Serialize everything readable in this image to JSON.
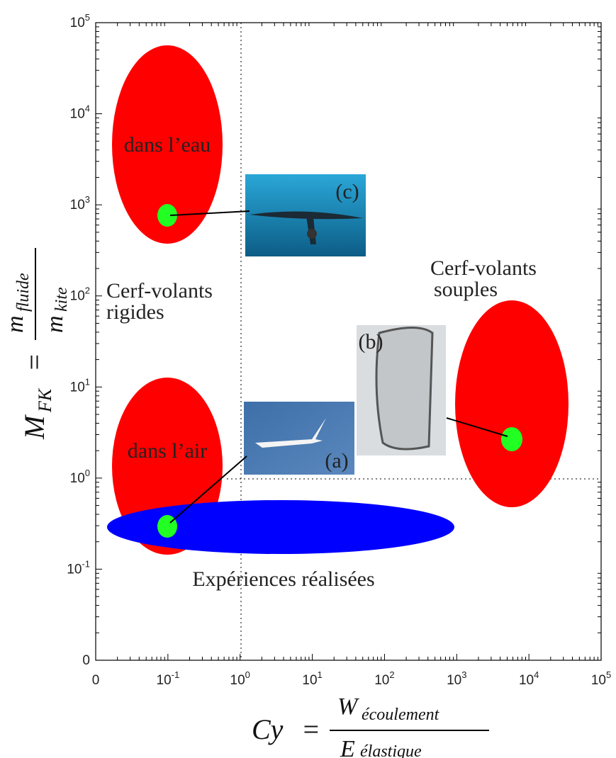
{
  "x_ticks": [
    {
      "base": "0"
    },
    {
      "base": "10",
      "exponent": "-1"
    },
    {
      "base": "10",
      "exponent": "0"
    },
    {
      "base": "10",
      "exponent": "1"
    },
    {
      "base": "10",
      "exponent": "2"
    },
    {
      "base": "10",
      "exponent": "3"
    },
    {
      "base": "10",
      "exponent": "4"
    },
    {
      "base": "10",
      "exponent": "5"
    }
  ],
  "y_ticks": [
    {
      "base": "0"
    },
    {
      "base": "10",
      "exponent": "-1"
    },
    {
      "base": "10",
      "exponent": "0"
    },
    {
      "base": "10",
      "exponent": "1"
    },
    {
      "base": "10",
      "exponent": "2"
    },
    {
      "base": "10",
      "exponent": "3"
    },
    {
      "base": "10",
      "exponent": "4"
    },
    {
      "base": "10",
      "exponent": "5"
    }
  ],
  "x_label": {
    "lhs": "Cy",
    "eq": "=",
    "num": "W",
    "num_sub": "écoulement",
    "den": "E",
    "den_sub": "élastique"
  },
  "y_label": {
    "lhs": "M",
    "lhs_sub": "FK",
    "eq": "=",
    "num": "m",
    "num_sub": "fluide",
    "den": "m",
    "den_sub": "kite"
  },
  "regions": {
    "water": "dans l’eau",
    "air": "dans l’air",
    "rigid": [
      "Cerf-volants",
      "rigides"
    ],
    "flexible": [
      "Cerf-volants",
      "souples"
    ],
    "experiments": "Expériences réalisées"
  },
  "photos": {
    "a": "(a)",
    "b": "(b)",
    "c": "(c)"
  }
}
